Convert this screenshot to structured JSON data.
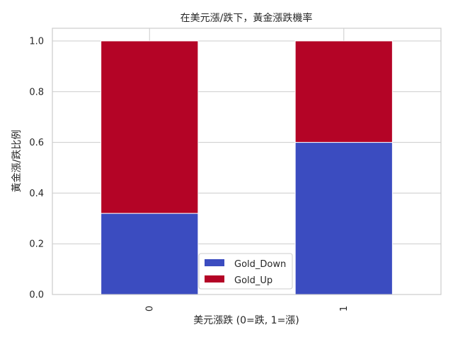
{
  "chart_data": {
    "type": "bar",
    "stacked": true,
    "title": "在美元漲/跌下，黃金漲跌機率",
    "xlabel": "美元漲跌 (0=跌, 1=漲)",
    "ylabel": "黃金漲/跌比例",
    "categories": [
      "0",
      "1"
    ],
    "series": [
      {
        "name": "Gold_Down",
        "values": [
          0.32,
          0.6
        ],
        "color": "#3b4cc0"
      },
      {
        "name": "Gold_Up",
        "values": [
          0.68,
          0.4
        ],
        "color": "#b40426"
      }
    ],
    "ylim": [
      0,
      1.05
    ],
    "yticks": [
      "0.0",
      "0.2",
      "0.4",
      "0.6",
      "0.8",
      "1.0"
    ],
    "grid": true,
    "legend_position": "lower center"
  }
}
